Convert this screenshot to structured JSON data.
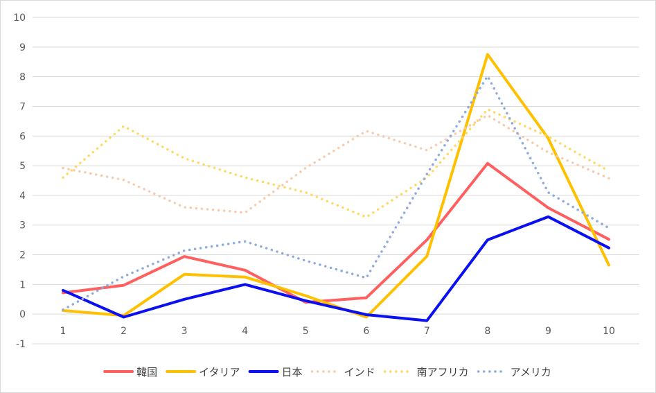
{
  "chart_data": {
    "type": "line",
    "title": "",
    "xlabel": "",
    "ylabel": "",
    "x": [
      1,
      2,
      3,
      4,
      5,
      6,
      7,
      8,
      9,
      10
    ],
    "ylim": [
      -1,
      10
    ],
    "yticks": [
      -1,
      0,
      1,
      2,
      3,
      4,
      5,
      6,
      7,
      8,
      9,
      10
    ],
    "grid": true,
    "legend_position": "bottom",
    "series": [
      {
        "name": "韓国",
        "color": "#ff5f5f",
        "style": "solid",
        "values": [
          0.72,
          0.97,
          1.94,
          1.48,
          0.4,
          0.55,
          2.5,
          5.08,
          3.58,
          2.52
        ]
      },
      {
        "name": "イタリア",
        "color": "#ffc000",
        "style": "solid",
        "values": [
          0.12,
          -0.05,
          1.34,
          1.25,
          0.62,
          -0.1,
          1.95,
          8.75,
          5.92,
          1.65
        ]
      },
      {
        "name": "日本",
        "color": "#0a10ef",
        "style": "solid",
        "values": [
          0.8,
          -0.1,
          0.5,
          1.0,
          0.45,
          -0.02,
          -0.22,
          2.5,
          3.28,
          2.23
        ]
      },
      {
        "name": "インド",
        "color": "#f8cbad",
        "style": "dotted",
        "values": [
          4.92,
          4.52,
          3.6,
          3.42,
          4.92,
          6.17,
          5.52,
          6.7,
          5.45,
          4.58
        ]
      },
      {
        "name": "南アフリカ",
        "color": "#ffd966",
        "style": "dotted",
        "values": [
          4.6,
          6.33,
          5.25,
          4.6,
          4.1,
          3.27,
          4.6,
          6.9,
          5.98,
          4.82
        ]
      },
      {
        "name": "アメリカ",
        "color": "#8faadc",
        "style": "dotted",
        "values": [
          0.15,
          1.27,
          2.14,
          2.45,
          1.8,
          1.22,
          4.72,
          8.02,
          4.1,
          2.9
        ]
      }
    ]
  }
}
